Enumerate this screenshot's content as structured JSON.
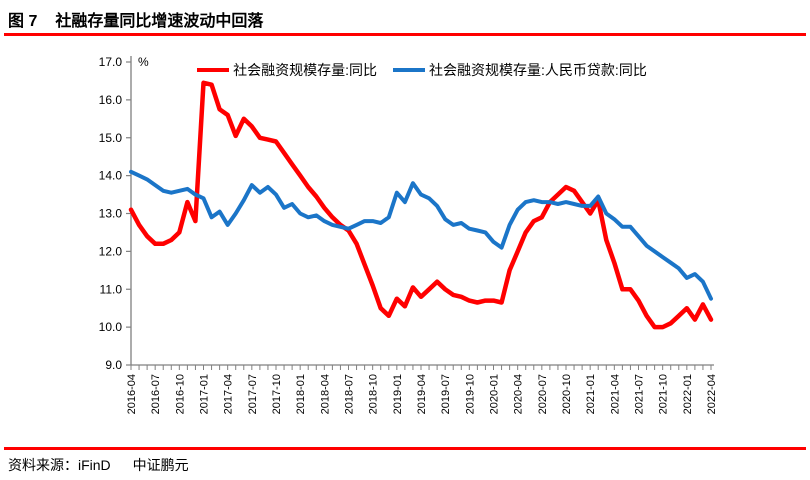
{
  "header": {
    "figure_label": "图 7",
    "title": "社融存量同比增速波动中回落"
  },
  "chart_data": {
    "type": "line",
    "title": "社融存量同比增速波动中回落",
    "unit_label": "%",
    "grid": false,
    "legend_position": "top-center",
    "ylim": [
      9.0,
      17.0
    ],
    "y_tick_step": 1.0,
    "x_tick_every": 3,
    "x": [
      "2016-04",
      "2016-05",
      "2016-06",
      "2016-07",
      "2016-08",
      "2016-09",
      "2016-10",
      "2016-11",
      "2016-12",
      "2017-01",
      "2017-02",
      "2017-03",
      "2017-04",
      "2017-05",
      "2017-06",
      "2017-07",
      "2017-08",
      "2017-09",
      "2017-10",
      "2017-11",
      "2017-12",
      "2018-01",
      "2018-02",
      "2018-03",
      "2018-04",
      "2018-05",
      "2018-06",
      "2018-07",
      "2018-08",
      "2018-09",
      "2018-10",
      "2018-11",
      "2018-12",
      "2019-01",
      "2019-02",
      "2019-03",
      "2019-04",
      "2019-05",
      "2019-06",
      "2019-07",
      "2019-08",
      "2019-09",
      "2019-10",
      "2019-11",
      "2019-12",
      "2020-01",
      "2020-02",
      "2020-03",
      "2020-04",
      "2020-05",
      "2020-06",
      "2020-07",
      "2020-08",
      "2020-09",
      "2020-10",
      "2020-11",
      "2020-12",
      "2021-01",
      "2021-02",
      "2021-03",
      "2021-04",
      "2021-05",
      "2021-06",
      "2021-07",
      "2021-08",
      "2021-09",
      "2021-10",
      "2021-11",
      "2021-12",
      "2022-01",
      "2022-02",
      "2022-03",
      "2022-04"
    ],
    "series": [
      {
        "name": "社会融资规模存量:同比",
        "color": "#FF0000",
        "stroke_width": 4.5,
        "values": [
          13.1,
          12.7,
          12.4,
          12.2,
          12.2,
          12.3,
          12.5,
          13.3,
          12.8,
          16.45,
          16.4,
          15.75,
          15.6,
          15.05,
          15.5,
          15.3,
          15.0,
          14.95,
          14.9,
          14.6,
          14.3,
          14.0,
          13.7,
          13.45,
          13.15,
          12.9,
          12.7,
          12.55,
          12.2,
          11.65,
          11.1,
          10.5,
          10.3,
          10.75,
          10.55,
          11.05,
          10.8,
          11.0,
          11.2,
          11.0,
          10.85,
          10.8,
          10.7,
          10.65,
          10.7,
          10.7,
          10.65,
          11.5,
          12.0,
          12.5,
          12.8,
          12.9,
          13.3,
          13.5,
          13.7,
          13.6,
          13.3,
          13.0,
          13.35,
          12.3,
          11.7,
          11.0,
          11.0,
          10.7,
          10.3,
          10.0,
          10.0,
          10.1,
          10.3,
          10.5,
          10.2,
          10.6,
          10.2
        ]
      },
      {
        "name": "社会融资规模存量:人民币贷款:同比",
        "color": "#1B75C8",
        "stroke_width": 4,
        "values": [
          14.1,
          14.0,
          13.9,
          13.75,
          13.6,
          13.55,
          13.6,
          13.65,
          13.5,
          13.4,
          12.9,
          13.05,
          12.7,
          13.0,
          13.35,
          13.75,
          13.55,
          13.7,
          13.5,
          13.15,
          13.25,
          13.0,
          12.9,
          12.95,
          12.8,
          12.7,
          12.65,
          12.6,
          12.7,
          12.8,
          12.8,
          12.75,
          12.9,
          13.55,
          13.3,
          13.8,
          13.5,
          13.4,
          13.2,
          12.85,
          12.7,
          12.75,
          12.6,
          12.55,
          12.5,
          12.25,
          12.1,
          12.7,
          13.1,
          13.3,
          13.35,
          13.3,
          13.3,
          13.25,
          13.3,
          13.25,
          13.2,
          13.2,
          13.45,
          13.0,
          12.85,
          12.65,
          12.65,
          12.4,
          12.15,
          12.0,
          11.85,
          11.7,
          11.55,
          11.3,
          11.4,
          11.2,
          10.75
        ]
      }
    ]
  },
  "footer": {
    "source_label": "资料来源：iFinD",
    "brand": "中证鹏元"
  },
  "colors": {
    "accent_red": "#FF0000",
    "axis_gray": "#808080",
    "text_black": "#000000"
  }
}
